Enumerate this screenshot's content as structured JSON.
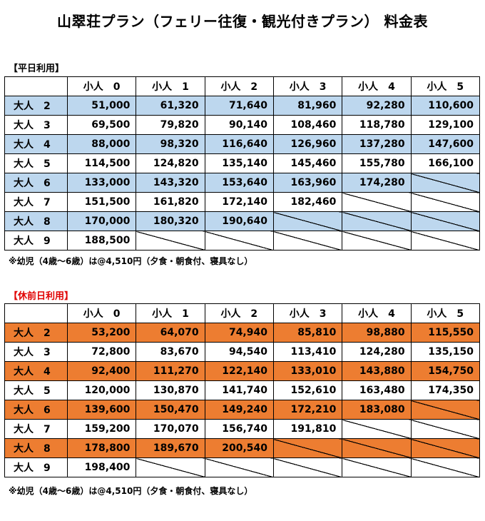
{
  "title": "山翠荘プラン（フェリー往復・観光付きプラン） 料金表",
  "tables": [
    {
      "label": "【平日利用】",
      "highlight": "#bdd7ee",
      "headers": [
        "",
        "小人　0",
        "小人　1",
        "小人　2",
        "小人　3",
        "小人　4",
        "小人　5"
      ],
      "rows": [
        {
          "label": "大人　2",
          "values": [
            "51,000",
            "61,320",
            "71,640",
            "81,960",
            "92,280",
            "110,600"
          ]
        },
        {
          "label": "大人　3",
          "values": [
            "69,500",
            "79,820",
            "90,140",
            "108,460",
            "118,780",
            "129,100"
          ]
        },
        {
          "label": "大人　4",
          "values": [
            "88,000",
            "98,320",
            "116,640",
            "126,960",
            "137,280",
            "147,600"
          ]
        },
        {
          "label": "大人　5",
          "values": [
            "114,500",
            "124,820",
            "135,140",
            "145,460",
            "155,780",
            "166,100"
          ]
        },
        {
          "label": "大人　6",
          "values": [
            "133,000",
            "143,320",
            "153,640",
            "163,960",
            "174,280",
            ""
          ]
        },
        {
          "label": "大人　7",
          "values": [
            "151,500",
            "161,820",
            "172,140",
            "182,460",
            "",
            ""
          ]
        },
        {
          "label": "大人　8",
          "values": [
            "170,000",
            "180,320",
            "190,640",
            "",
            "",
            ""
          ]
        },
        {
          "label": "大人　9",
          "values": [
            "188,500",
            "",
            "",
            "",
            "",
            ""
          ]
        }
      ],
      "note": "※幼児（4歳～6歳）は@4,510円（夕食・朝食付、寝具なし）"
    },
    {
      "label": "【休前日利用】",
      "highlight": "#ed7d31",
      "headers": [
        "",
        "小人　0",
        "小人　1",
        "小人　2",
        "小人　3",
        "小人　4",
        "小人　5"
      ],
      "rows": [
        {
          "label": "大人　2",
          "values": [
            "53,200",
            "64,070",
            "74,940",
            "85,810",
            "98,880",
            "115,550"
          ]
        },
        {
          "label": "大人　3",
          "values": [
            "72,800",
            "83,670",
            "94,540",
            "113,410",
            "124,280",
            "135,150"
          ]
        },
        {
          "label": "大人　4",
          "values": [
            "92,400",
            "111,270",
            "122,140",
            "133,010",
            "143,880",
            "154,750"
          ]
        },
        {
          "label": "大人　5",
          "values": [
            "120,000",
            "130,870",
            "141,740",
            "152,610",
            "163,480",
            "174,350"
          ]
        },
        {
          "label": "大人　6",
          "values": [
            "139,600",
            "150,470",
            "149,240",
            "172,210",
            "183,080",
            ""
          ]
        },
        {
          "label": "大人　7",
          "values": [
            "159,200",
            "170,070",
            "156,740",
            "191,810",
            "",
            ""
          ]
        },
        {
          "label": "大人　8",
          "values": [
            "178,800",
            "189,670",
            "200,540",
            "",
            "",
            ""
          ]
        },
        {
          "label": "大人　9",
          "values": [
            "198,400",
            "",
            "",
            "",
            "",
            ""
          ]
        }
      ],
      "note": "※幼児（4歳～6歳）は@4,510円（夕食・朝食付、寝具なし）"
    }
  ]
}
